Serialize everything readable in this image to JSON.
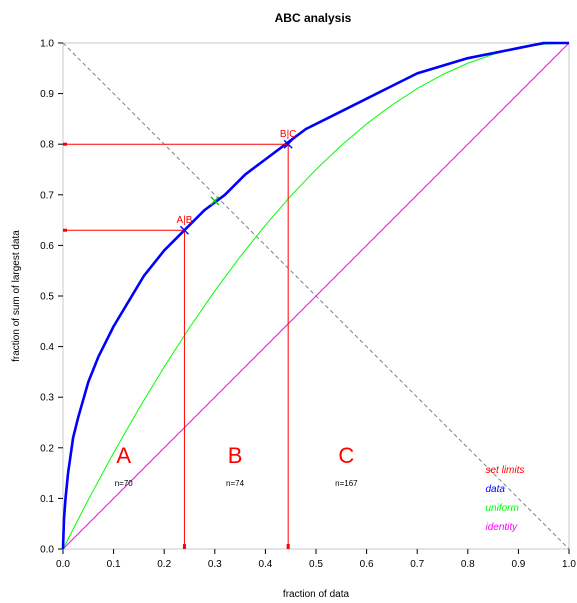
{
  "chart_data": {
    "type": "line",
    "title": "ABC analysis",
    "xlabel": "fraction of data",
    "ylabel": "fraction of sum of largest data",
    "xlim": [
      0,
      1
    ],
    "ylim": [
      0,
      1
    ],
    "x_ticks": [
      "0.0",
      "0.1",
      "0.2",
      "0.3",
      "0.4",
      "0.5",
      "0.6",
      "0.7",
      "0.8",
      "0.9",
      "1.0"
    ],
    "y_ticks": [
      "0.0",
      "0.1",
      "0.2",
      "0.3",
      "0.4",
      "0.5",
      "0.6",
      "0.7",
      "0.8",
      "0.9",
      "1.0"
    ],
    "grid": false,
    "series": [
      {
        "name": "data",
        "color": "#0000ff",
        "x": [
          0,
          0.002,
          0.005,
          0.01,
          0.02,
          0.03,
          0.05,
          0.07,
          0.1,
          0.13,
          0.16,
          0.2,
          0.24,
          0.28,
          0.32,
          0.36,
          0.4,
          0.44,
          0.48,
          0.52,
          0.56,
          0.6,
          0.65,
          0.7,
          0.75,
          0.8,
          0.85,
          0.9,
          0.95,
          1.0
        ],
        "y": [
          0,
          0.06,
          0.1,
          0.15,
          0.22,
          0.26,
          0.33,
          0.38,
          0.44,
          0.49,
          0.54,
          0.59,
          0.63,
          0.67,
          0.7,
          0.74,
          0.77,
          0.8,
          0.83,
          0.85,
          0.87,
          0.89,
          0.915,
          0.94,
          0.955,
          0.97,
          0.98,
          0.99,
          1.0,
          1.0
        ]
      },
      {
        "name": "uniform",
        "color": "#00ff00",
        "x": [
          0,
          0.05,
          0.1,
          0.15,
          0.2,
          0.25,
          0.3,
          0.35,
          0.4,
          0.45,
          0.5,
          0.55,
          0.6,
          0.65,
          0.7,
          0.75,
          0.8,
          0.85,
          0.9,
          0.95,
          1.0
        ],
        "y": [
          0,
          0.0975,
          0.19,
          0.2775,
          0.36,
          0.4375,
          0.51,
          0.5775,
          0.64,
          0.6975,
          0.75,
          0.7975,
          0.84,
          0.8775,
          0.91,
          0.9375,
          0.96,
          0.9775,
          0.99,
          0.9975,
          1.0
        ]
      },
      {
        "name": "identity",
        "color": "#ff00ff",
        "x": [
          0,
          1
        ],
        "y": [
          0,
          1
        ]
      }
    ],
    "reference_diagonal": {
      "x": [
        0,
        1
      ],
      "y": [
        1,
        0
      ],
      "color": "#808080"
    },
    "limits": [
      {
        "label": "A|B",
        "x": 0.24,
        "y": 0.63
      },
      {
        "label": "B|C",
        "x": 0.445,
        "y": 0.8
      }
    ],
    "uniform_marker": {
      "x": 0.3,
      "y": 0.688
    },
    "classes": [
      {
        "letter": "A",
        "count": "n=70",
        "x": 0.12
      },
      {
        "letter": "B",
        "count": "n=74",
        "x": 0.34
      },
      {
        "letter": "C",
        "count": "n=167",
        "x": 0.56
      }
    ],
    "legend": [
      {
        "label": "set limits",
        "color": "#ff0000"
      },
      {
        "label": "data",
        "color": "#0000ff"
      },
      {
        "label": "uniform",
        "color": "#00ff00"
      },
      {
        "label": "identity",
        "color": "#ff00ff"
      }
    ],
    "legend_position": "bottom-right",
    "limit_color": "#ff0000"
  }
}
